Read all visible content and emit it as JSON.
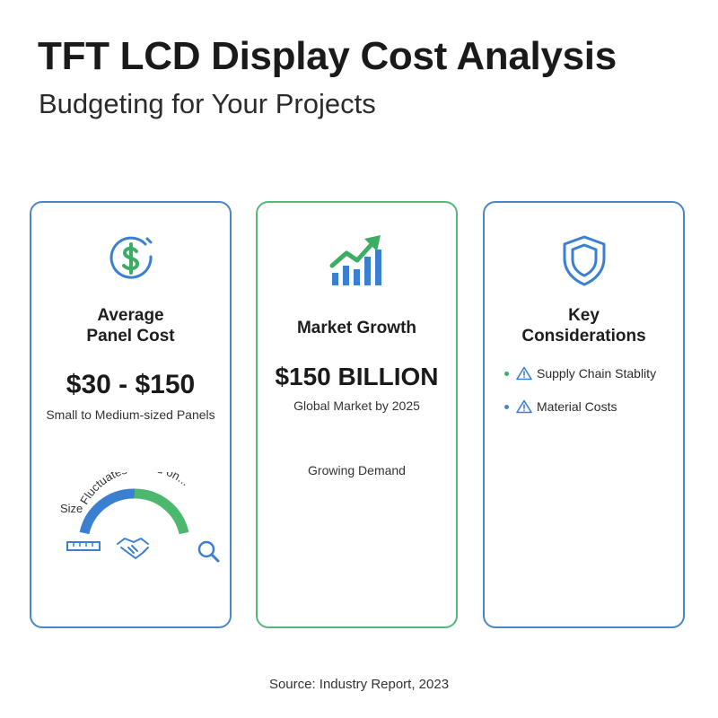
{
  "header": {
    "title": "TFT LCD Display Cost Analysis",
    "subtitle": "Budgeting for Your Projects"
  },
  "cards": [
    {
      "icon": "dollar-icon",
      "heading_line1": "Average",
      "heading_line2": "Panel Cost",
      "value": "$30 - $150",
      "caption": "Small to Medium-sized Panels",
      "gauge": {
        "arc_label": "Fluctuates based on...",
        "side_label": "Size",
        "icons": [
          "ruler-icon",
          "handshake-icon",
          "magnifier-icon"
        ],
        "colors": [
          "#3b7fd0",
          "#4cb86e"
        ]
      },
      "border_color": "#4a86c8"
    },
    {
      "icon": "growth-chart-icon",
      "heading": "Market Growth",
      "value": "$150 BILLION",
      "caption": "Global Market by 2025",
      "note": "Growing Demand",
      "border_color": "#53b87a"
    },
    {
      "icon": "shield-icon",
      "heading_line1": "Key",
      "heading_line2": "Considerations",
      "items": [
        {
          "label": "Supply Chain Stablity",
          "bullet_color": "#3fae6a",
          "icon": "warning-icon"
        },
        {
          "label": "Material Costs",
          "bullet_color": "#4a86c8",
          "icon": "warning-icon"
        }
      ],
      "border_color": "#4a86c8"
    }
  ],
  "footer": {
    "source": "Source: Industry Report, 2023"
  }
}
